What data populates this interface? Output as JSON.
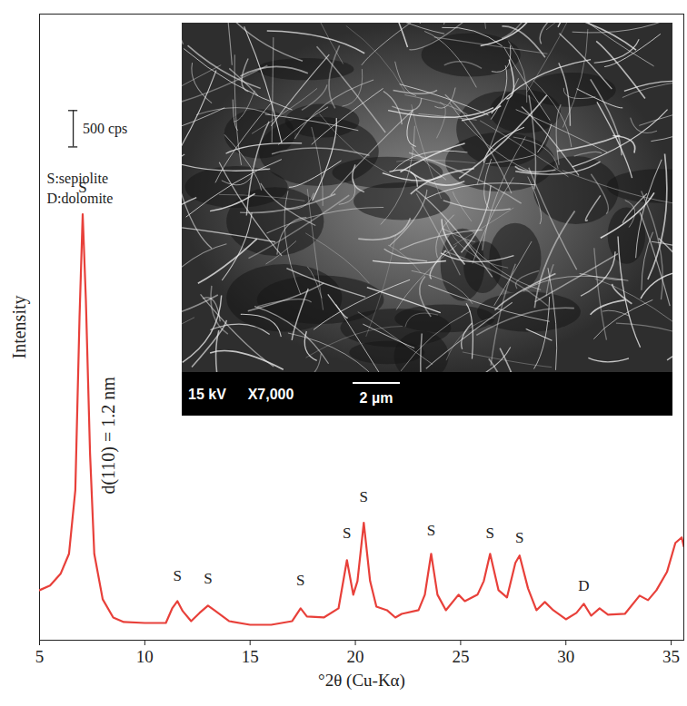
{
  "chart_data": {
    "type": "line",
    "xlabel": "°2θ (Cu-Kα)",
    "ylabel": "Intensity",
    "xlim": [
      5,
      35.6
    ],
    "ylim": [
      0,
      8600
    ],
    "xticks": [
      5,
      10,
      15,
      20,
      25,
      30,
      35
    ],
    "tick_labels": "x",
    "color": "#e8403a",
    "x": [
      5.0,
      5.5,
      6.0,
      6.4,
      6.7,
      6.9,
      7.05,
      7.2,
      7.4,
      7.6,
      8.0,
      8.5,
      9.0,
      10.0,
      11.0,
      11.3,
      11.55,
      11.8,
      12.2,
      12.6,
      13.0,
      13.3,
      14.0,
      15.0,
      16.0,
      17.0,
      17.4,
      17.7,
      18.5,
      19.2,
      19.6,
      19.9,
      20.1,
      20.4,
      20.7,
      21.0,
      21.5,
      21.9,
      22.2,
      23.0,
      23.3,
      23.6,
      23.9,
      24.3,
      24.9,
      25.2,
      25.8,
      26.1,
      26.4,
      26.8,
      27.2,
      27.6,
      27.8,
      28.2,
      28.6,
      29.0,
      29.4,
      30.0,
      30.5,
      30.85,
      31.2,
      31.6,
      32.0,
      32.8,
      33.5,
      33.9,
      34.3,
      34.8,
      35.2,
      35.5,
      35.6
    ],
    "values": [
      687,
      750,
      912,
      1187,
      2062,
      4437,
      5850,
      4687,
      2562,
      1187,
      562,
      312,
      250,
      237,
      237,
      437,
      537,
      400,
      262,
      375,
      475,
      412,
      262,
      212,
      212,
      262,
      437,
      325,
      312,
      437,
      1100,
      625,
      812,
      1612,
      812,
      462,
      412,
      312,
      362,
      412,
      625,
      1187,
      625,
      412,
      625,
      537,
      625,
      812,
      1187,
      687,
      587,
      1062,
      1162,
      712,
      412,
      525,
      412,
      287,
      375,
      500,
      337,
      437,
      350,
      362,
      612,
      550,
      687,
      937,
      1337,
      1412,
      1287
    ],
    "peak_labels": [
      {
        "x": 7.05,
        "y": 6150,
        "text": "S"
      },
      {
        "x": 11.55,
        "y": 812,
        "text": "S"
      },
      {
        "x": 13.0,
        "y": 775,
        "text": "S"
      },
      {
        "x": 17.4,
        "y": 750,
        "text": "S"
      },
      {
        "x": 19.6,
        "y": 1400,
        "text": "S"
      },
      {
        "x": 20.4,
        "y": 1900,
        "text": "S"
      },
      {
        "x": 23.6,
        "y": 1437,
        "text": "S"
      },
      {
        "x": 26.4,
        "y": 1400,
        "text": "S"
      },
      {
        "x": 27.8,
        "y": 1337,
        "text": "S"
      },
      {
        "x": 30.85,
        "y": 675,
        "text": "D"
      }
    ],
    "annotations": [
      {
        "x": 8.3,
        "y": 2812,
        "text": "d(110) = 1.2 nm"
      }
    ],
    "legend_texts": [
      "S:sepiolite",
      "D:dolomite"
    ],
    "scale_bar": {
      "x": 6.6,
      "y": 6775,
      "length": 500,
      "label": "500 cps"
    },
    "inset": {
      "voltage": "15 kV",
      "magnification": "X7,000",
      "scale_label": "2 µm"
    }
  }
}
